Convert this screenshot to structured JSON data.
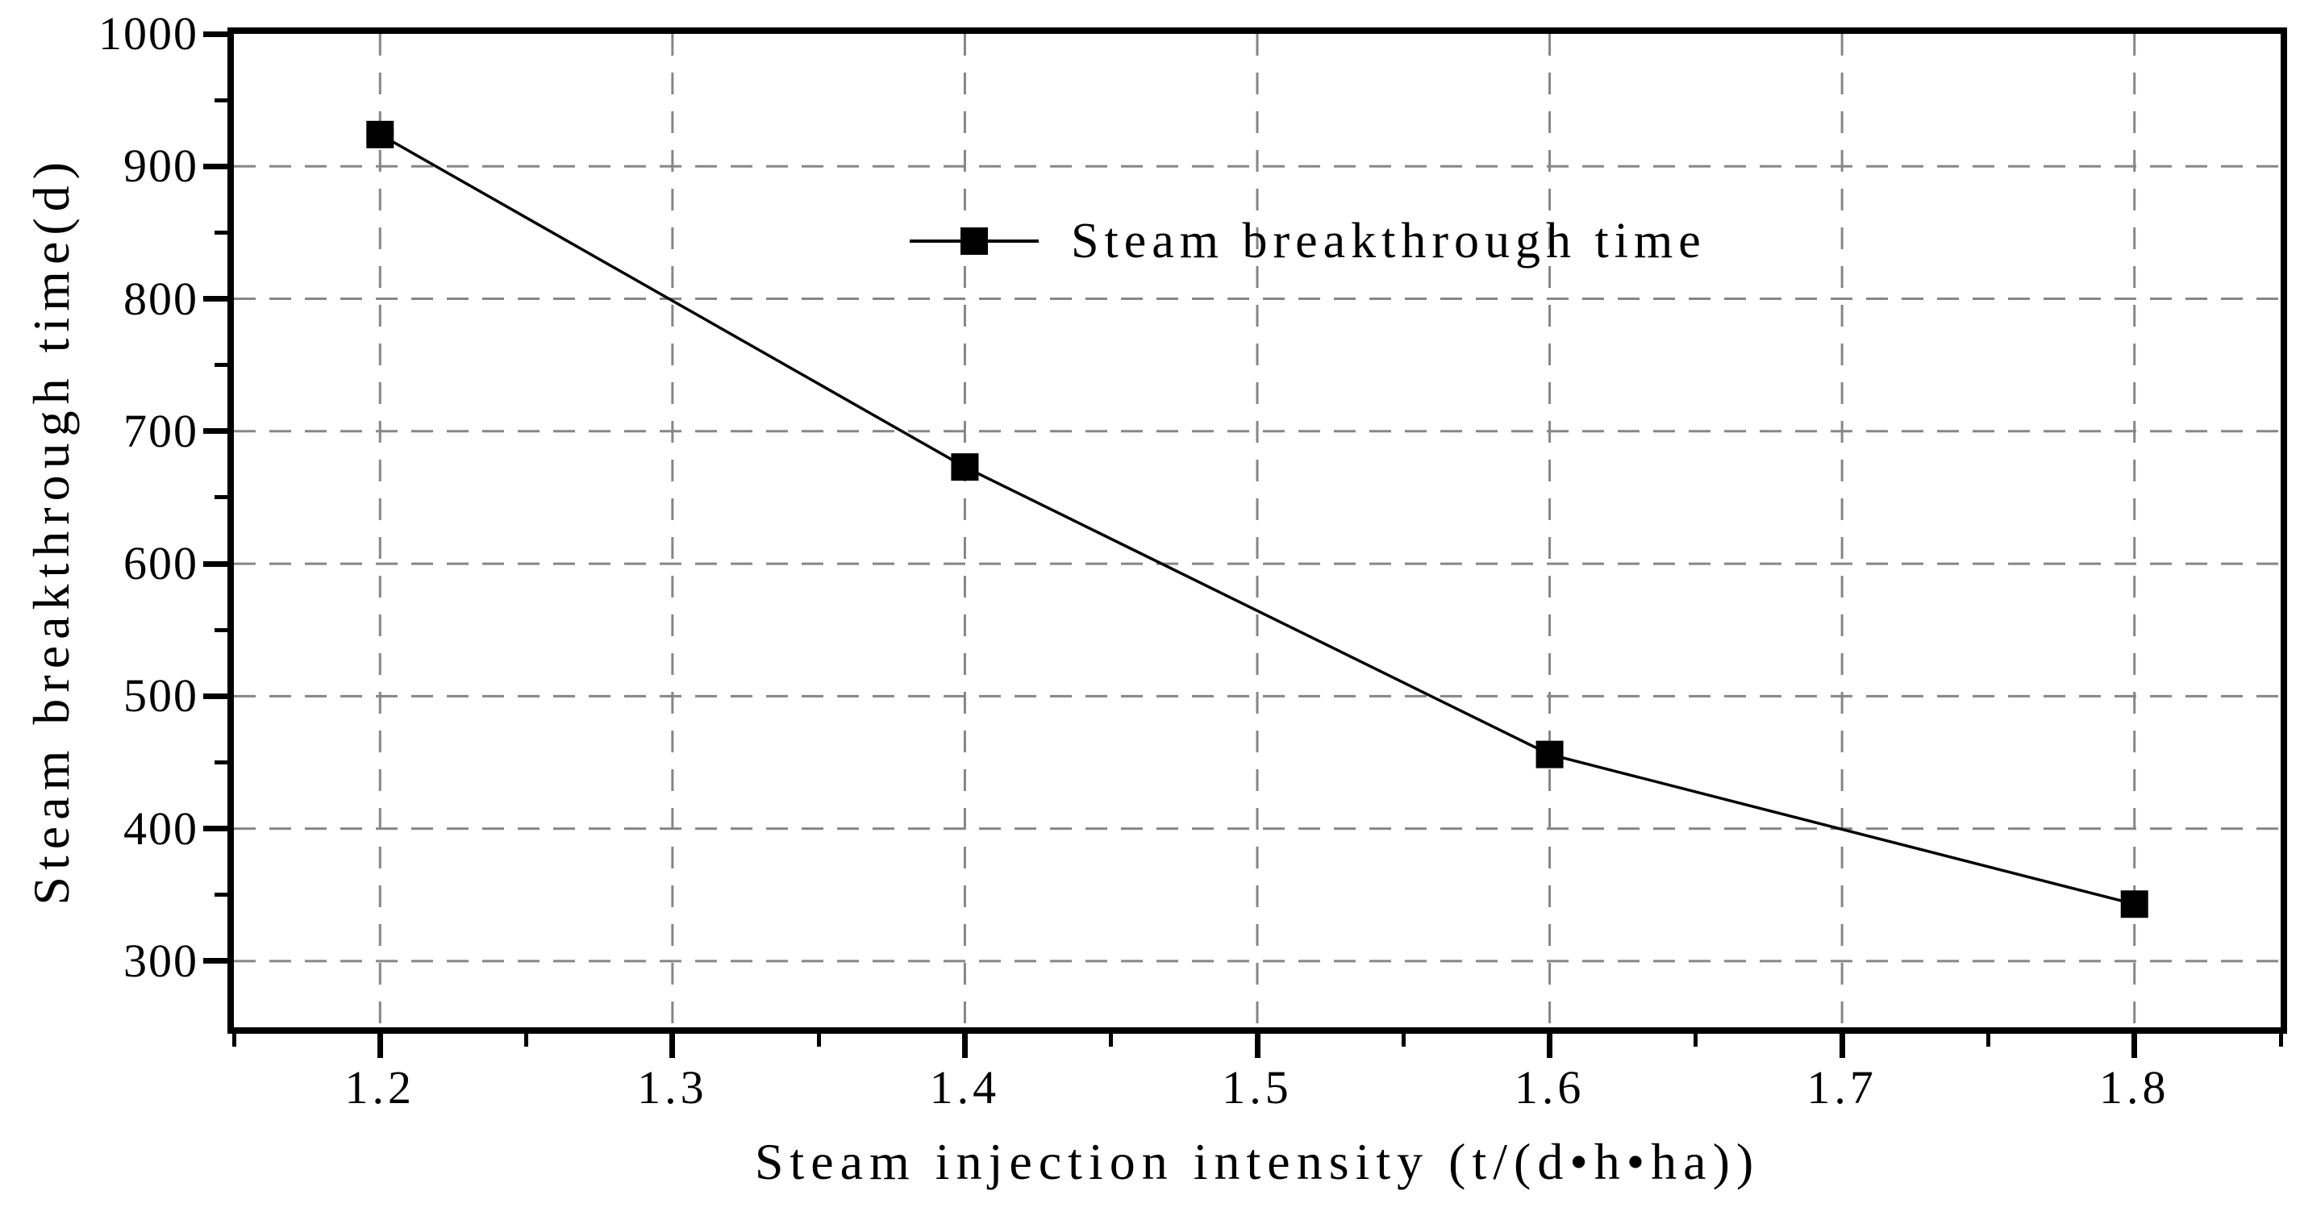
{
  "chart_data": {
    "type": "line",
    "title": "",
    "xlabel": "Steam injection intensity (t/(d•h•ha))",
    "ylabel": "Steam breakthrough time(d)",
    "series": [
      {
        "name": "Steam breakthrough time",
        "x": [
          1.2,
          1.4,
          1.6,
          1.8
        ],
        "y": [
          924,
          673,
          456,
          343
        ],
        "marker": "filled-square",
        "color": "#000000"
      }
    ],
    "xlim": [
      1.15,
      1.85
    ],
    "ylim": [
      250,
      1000
    ],
    "x_major_ticks": [
      1.2,
      1.3,
      1.4,
      1.5,
      1.6,
      1.7,
      1.8
    ],
    "x_tick_labels": [
      "1.2",
      "1.3",
      "1.4",
      "1.5",
      "1.6",
      "1.7",
      "1.8"
    ],
    "x_minor_ticks": [
      1.15,
      1.25,
      1.35,
      1.45,
      1.55,
      1.65,
      1.75,
      1.85
    ],
    "y_major_ticks": [
      300,
      400,
      500,
      600,
      700,
      800,
      900,
      1000
    ],
    "y_tick_labels": [
      "300",
      "400",
      "500",
      "600",
      "700",
      "800",
      "900",
      "1000"
    ],
    "y_minor_ticks": [
      350,
      450,
      550,
      650,
      750,
      850,
      950
    ],
    "grid": "dashed-major-both-axes",
    "grid_color": "#868686",
    "axis_color": "#000000",
    "background_color": "#ffffff",
    "legend_position": "upper-center-inside",
    "legend_frame": false
  }
}
